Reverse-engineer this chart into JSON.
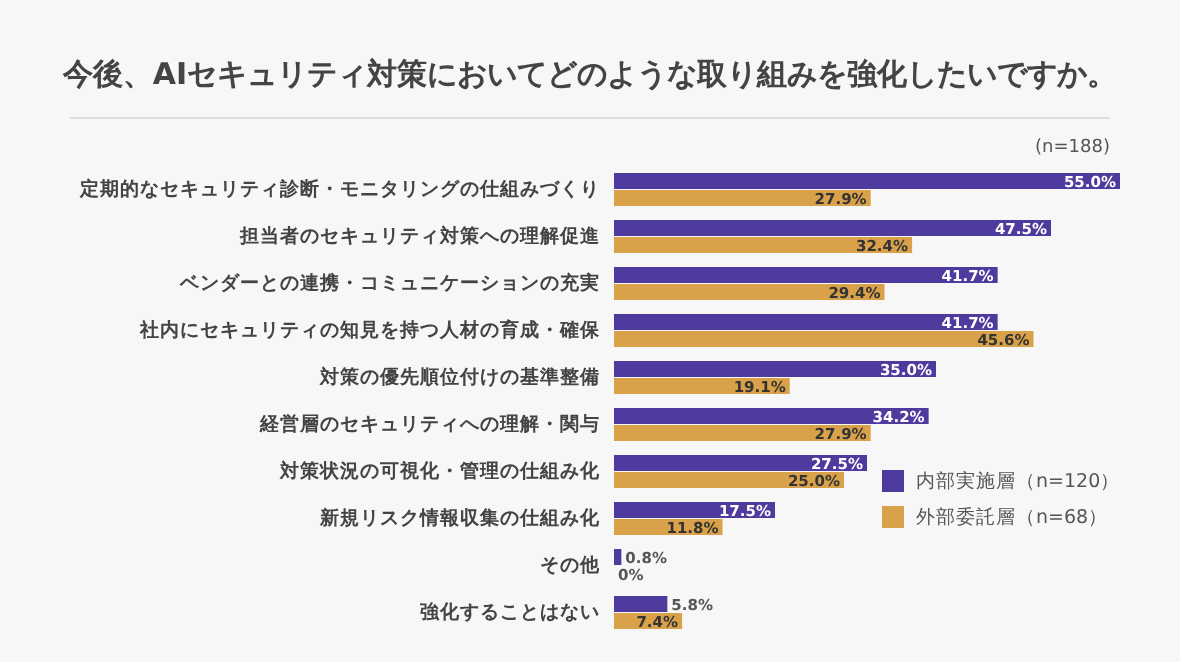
{
  "chart_data": {
    "type": "bar",
    "orientation": "horizontal",
    "title": "今後、AIセキュリティ対策においてどのような取り組みを強化したいですか。",
    "annotations": [
      "(n=188)"
    ],
    "legend": "bottom right",
    "categories": [
      "定期的なセキュリティ診断・モニタリングの仕組みづくり",
      "担当者のセキュリティ対策への理解促進",
      "ベンダーとの連携・コミュニケーションの充実",
      "社内にセキュリティの知見を持つ人材の育成・確保",
      "対策の優先順位付けの基準整備",
      "経営層のセキュリティへの理解・関与",
      "対策状況の可視化・管理の仕組み化",
      "新規リスク情報収集の仕組み化",
      "その他",
      "強化することはない"
    ],
    "series": [
      {
        "name": "内部実施層（n=120）",
        "color": "#4f3b9e",
        "values": [
          55.0,
          47.5,
          41.7,
          41.7,
          35.0,
          34.2,
          27.5,
          17.5,
          0.8,
          5.8
        ],
        "value_labels": [
          "55.0%",
          "47.5%",
          "41.7%",
          "41.7%",
          "35.0%",
          "34.2%",
          "27.5%",
          "17.5%",
          "0.8%",
          "5.8%"
        ]
      },
      {
        "name": "外部委託層（n=68）",
        "color": "#d9a24a",
        "values": [
          27.9,
          32.4,
          29.4,
          45.6,
          19.1,
          27.9,
          25.0,
          11.8,
          0,
          7.4
        ],
        "value_labels": [
          "27.9%",
          "32.4%",
          "29.4%",
          "45.6%",
          "19.1%",
          "27.9%",
          "25.0%",
          "11.8%",
          "0%",
          "7.4%"
        ]
      }
    ]
  }
}
